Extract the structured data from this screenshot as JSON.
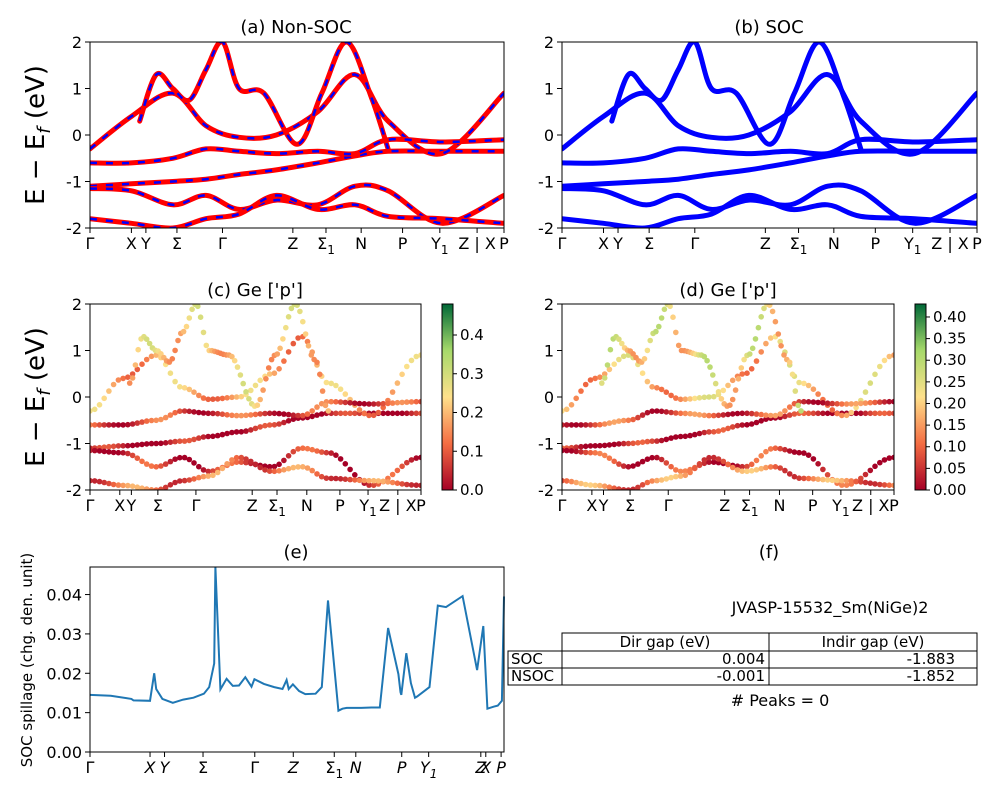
{
  "figure": {
    "ylabel_main": "E − E",
    "ylabel_sub": "f",
    "ylabel_unit": " (eV)",
    "spill_ylabel": "SOC spillage (chg. den. unit)"
  },
  "kpath": {
    "labels": [
      "Γ",
      "X",
      "Y",
      "Σ",
      "Γ",
      "Z",
      "Σ",
      "N",
      "P",
      "Y",
      "Z | X",
      "P"
    ],
    "subscripts": [
      "",
      "",
      "",
      "",
      "",
      "",
      "1",
      "",
      "",
      "1",
      "",
      ""
    ]
  },
  "chart_data": [
    {
      "id": "a",
      "type": "line",
      "title": "(a) Non-SOC",
      "ylim": [
        -2,
        2
      ],
      "yticks": [
        -2,
        -1,
        0,
        1,
        2
      ],
      "colors": {
        "bands": "#ff0000",
        "dash": "#0000ff"
      },
      "series": [
        {
          "x": [
            0,
            0.1,
            0.2,
            0.28,
            0.36,
            0.45,
            0.55,
            0.64,
            0.72,
            0.85,
            1
          ],
          "y": [
            -1.1,
            -1.05,
            -1.0,
            -0.95,
            -0.85,
            -0.75,
            -0.6,
            -0.45,
            -0.35,
            -0.35,
            -0.35
          ]
        },
        {
          "x": [
            0,
            0.1,
            0.2,
            0.28,
            0.36,
            0.45,
            0.55,
            0.64,
            0.72,
            0.85,
            1
          ],
          "y": [
            -0.3,
            0.4,
            0.9,
            0.2,
            -0.05,
            0.0,
            0.5,
            1.3,
            0.3,
            -0.4,
            0.9
          ]
        },
        {
          "x": [
            0,
            0.1,
            0.2,
            0.28,
            0.36,
            0.45,
            0.55,
            0.64,
            0.72,
            0.85,
            1
          ],
          "y": [
            -0.6,
            -0.6,
            -0.5,
            -0.3,
            -0.35,
            -0.4,
            -0.35,
            -0.4,
            -0.1,
            -0.15,
            -0.1
          ]
        },
        {
          "x": [
            0,
            0.1,
            0.2,
            0.28,
            0.36,
            0.45,
            0.55,
            0.64,
            0.72,
            0.85,
            1
          ],
          "y": [
            -1.15,
            -1.2,
            -1.5,
            -1.3,
            -1.6,
            -1.4,
            -1.5,
            -1.1,
            -1.2,
            -1.9,
            -1.3
          ]
        },
        {
          "x": [
            0,
            0.1,
            0.2,
            0.28,
            0.36,
            0.45,
            0.55,
            0.64,
            0.72,
            0.85,
            1
          ],
          "y": [
            -1.8,
            -1.9,
            -2.0,
            -1.8,
            -1.7,
            -1.3,
            -1.6,
            -1.5,
            -1.75,
            -1.8,
            -1.9
          ]
        },
        {
          "x": [
            0.12,
            0.16,
            0.2,
            0.24,
            0.28,
            0.32,
            0.36,
            0.42,
            0.5,
            0.56,
            0.62,
            0.68,
            0.72
          ],
          "y": [
            0.3,
            1.3,
            1.0,
            0.75,
            1.4,
            2.0,
            1.0,
            0.9,
            -0.2,
            0.9,
            2.0,
            0.8,
            -0.3
          ]
        }
      ]
    },
    {
      "id": "b",
      "type": "line",
      "title": "(b) SOC",
      "ylim": [
        -2,
        2
      ],
      "yticks": [
        -2,
        -1,
        0,
        1,
        2
      ],
      "colors": {
        "bands": "#0000ff"
      },
      "series": [
        {
          "x": [
            0,
            0.1,
            0.2,
            0.28,
            0.36,
            0.45,
            0.55,
            0.64,
            0.72,
            0.85,
            1
          ],
          "y": [
            -1.1,
            -1.05,
            -1.0,
            -0.95,
            -0.85,
            -0.75,
            -0.6,
            -0.45,
            -0.35,
            -0.35,
            -0.35
          ]
        },
        {
          "x": [
            0,
            0.1,
            0.2,
            0.28,
            0.36,
            0.45,
            0.55,
            0.64,
            0.72,
            0.85,
            1
          ],
          "y": [
            -0.3,
            0.4,
            0.9,
            0.2,
            -0.05,
            0.0,
            0.5,
            1.3,
            0.3,
            -0.4,
            0.9
          ]
        },
        {
          "x": [
            0,
            0.1,
            0.2,
            0.28,
            0.36,
            0.45,
            0.55,
            0.64,
            0.72,
            0.85,
            1
          ],
          "y": [
            -0.6,
            -0.6,
            -0.5,
            -0.3,
            -0.35,
            -0.4,
            -0.35,
            -0.4,
            -0.1,
            -0.15,
            -0.1
          ]
        },
        {
          "x": [
            0,
            0.1,
            0.2,
            0.28,
            0.36,
            0.45,
            0.55,
            0.64,
            0.72,
            0.85,
            1
          ],
          "y": [
            -1.15,
            -1.2,
            -1.5,
            -1.3,
            -1.6,
            -1.4,
            -1.5,
            -1.1,
            -1.2,
            -1.9,
            -1.3
          ]
        },
        {
          "x": [
            0,
            0.1,
            0.2,
            0.28,
            0.36,
            0.45,
            0.55,
            0.64,
            0.72,
            0.85,
            1
          ],
          "y": [
            -1.8,
            -1.9,
            -2.0,
            -1.8,
            -1.7,
            -1.3,
            -1.6,
            -1.5,
            -1.75,
            -1.8,
            -1.9
          ]
        },
        {
          "x": [
            0.12,
            0.16,
            0.2,
            0.24,
            0.28,
            0.32,
            0.36,
            0.42,
            0.5,
            0.56,
            0.62,
            0.68,
            0.72
          ],
          "y": [
            0.3,
            1.3,
            1.0,
            0.75,
            1.4,
            2.0,
            1.0,
            0.9,
            -0.2,
            0.9,
            2.0,
            0.8,
            -0.3
          ]
        }
      ]
    },
    {
      "id": "c",
      "type": "scatter",
      "title": "(c)  Ge ['p']",
      "ylim": [
        -2,
        2
      ],
      "yticks": [
        -2,
        -1,
        0,
        1,
        2
      ],
      "colorbar": {
        "ticks": [
          0.0,
          0.1,
          0.2,
          0.3,
          0.4
        ],
        "max": 0.48
      }
    },
    {
      "id": "d",
      "type": "scatter",
      "title": "(d) Ge ['p']",
      "ylim": [
        -2,
        2
      ],
      "yticks": [
        -2,
        -1,
        0,
        1,
        2
      ],
      "colorbar": {
        "ticks": [
          0.0,
          0.05,
          0.1,
          0.15,
          0.2,
          0.25,
          0.3,
          0.35,
          0.4
        ],
        "max": 0.43
      }
    },
    {
      "id": "e",
      "type": "line",
      "title": "(e)",
      "ylim": [
        0,
        0.047
      ],
      "yticks": [
        0.0,
        0.01,
        0.02,
        0.03,
        0.04
      ],
      "ytick_labels": [
        "0.00",
        "0.01",
        "0.02",
        "0.03",
        "0.04"
      ],
      "color": "#1f77b4",
      "x_ticks": [
        {
          "t": "Γ",
          "s": "",
          "x": 0.0
        },
        {
          "t": "X",
          "s": "",
          "x": 0.145
        },
        {
          "t": "Y",
          "s": "",
          "x": 0.18
        },
        {
          "t": "Σ",
          "s": "",
          "x": 0.273
        },
        {
          "t": "Γ",
          "s": "",
          "x": 0.398
        },
        {
          "t": "Z",
          "s": "",
          "x": 0.491
        },
        {
          "t": "Σ",
          "s": "1",
          "x": 0.59
        },
        {
          "t": "N",
          "s": "",
          "x": 0.642
        },
        {
          "t": "P",
          "s": "",
          "x": 0.753
        },
        {
          "t": "Y",
          "s": "1",
          "x": 0.818
        },
        {
          "t": "Z",
          "s": "",
          "x": 0.944
        },
        {
          "t": "X",
          "s": "",
          "x": 0.956
        },
        {
          "t": "P",
          "s": "",
          "x": 0.993
        }
      ],
      "x": [
        0,
        0.05,
        0.1,
        0.105,
        0.145,
        0.155,
        0.16,
        0.175,
        0.2,
        0.225,
        0.25,
        0.275,
        0.288,
        0.3,
        0.303,
        0.315,
        0.33,
        0.345,
        0.36,
        0.375,
        0.39,
        0.397,
        0.42,
        0.445,
        0.465,
        0.475,
        0.48,
        0.49,
        0.505,
        0.52,
        0.545,
        0.56,
        0.575,
        0.6,
        0.61,
        0.62,
        0.64,
        0.655,
        0.68,
        0.7,
        0.72,
        0.745,
        0.75,
        0.752,
        0.764,
        0.775,
        0.785,
        0.79,
        0.82,
        0.84,
        0.86,
        0.9,
        0.935,
        0.95,
        0.96,
        0.975,
        0.985,
        0.995,
        1
      ],
      "y": [
        0.0145,
        0.0143,
        0.0135,
        0.0131,
        0.013,
        0.02,
        0.016,
        0.0135,
        0.0125,
        0.0133,
        0.0138,
        0.0148,
        0.0165,
        0.0225,
        0.047,
        0.0159,
        0.0186,
        0.0168,
        0.0169,
        0.019,
        0.0166,
        0.0185,
        0.0173,
        0.0165,
        0.016,
        0.0183,
        0.016,
        0.0172,
        0.0155,
        0.0147,
        0.0148,
        0.0165,
        0.0385,
        0.0105,
        0.011,
        0.0112,
        0.0112,
        0.0112,
        0.0113,
        0.0113,
        0.0315,
        0.0198,
        0.0152,
        0.0145,
        0.0251,
        0.0175,
        0.0138,
        0.0141,
        0.0165,
        0.0372,
        0.0368,
        0.0396,
        0.0208,
        0.032,
        0.011,
        0.0115,
        0.0118,
        0.013,
        0.0395
      ]
    }
  ],
  "panel_f": {
    "title": "(f)",
    "material": "JVASP-15532_Sm(NiGe)2",
    "table": {
      "header": [
        "",
        "Dir gap (eV)",
        "Indir gap (eV)"
      ],
      "rows": [
        [
          "SOC",
          "0.004",
          "-1.883"
        ],
        [
          "NSOC",
          "-0.001",
          "-1.852"
        ]
      ]
    },
    "peaks": "# Peaks = 0"
  }
}
